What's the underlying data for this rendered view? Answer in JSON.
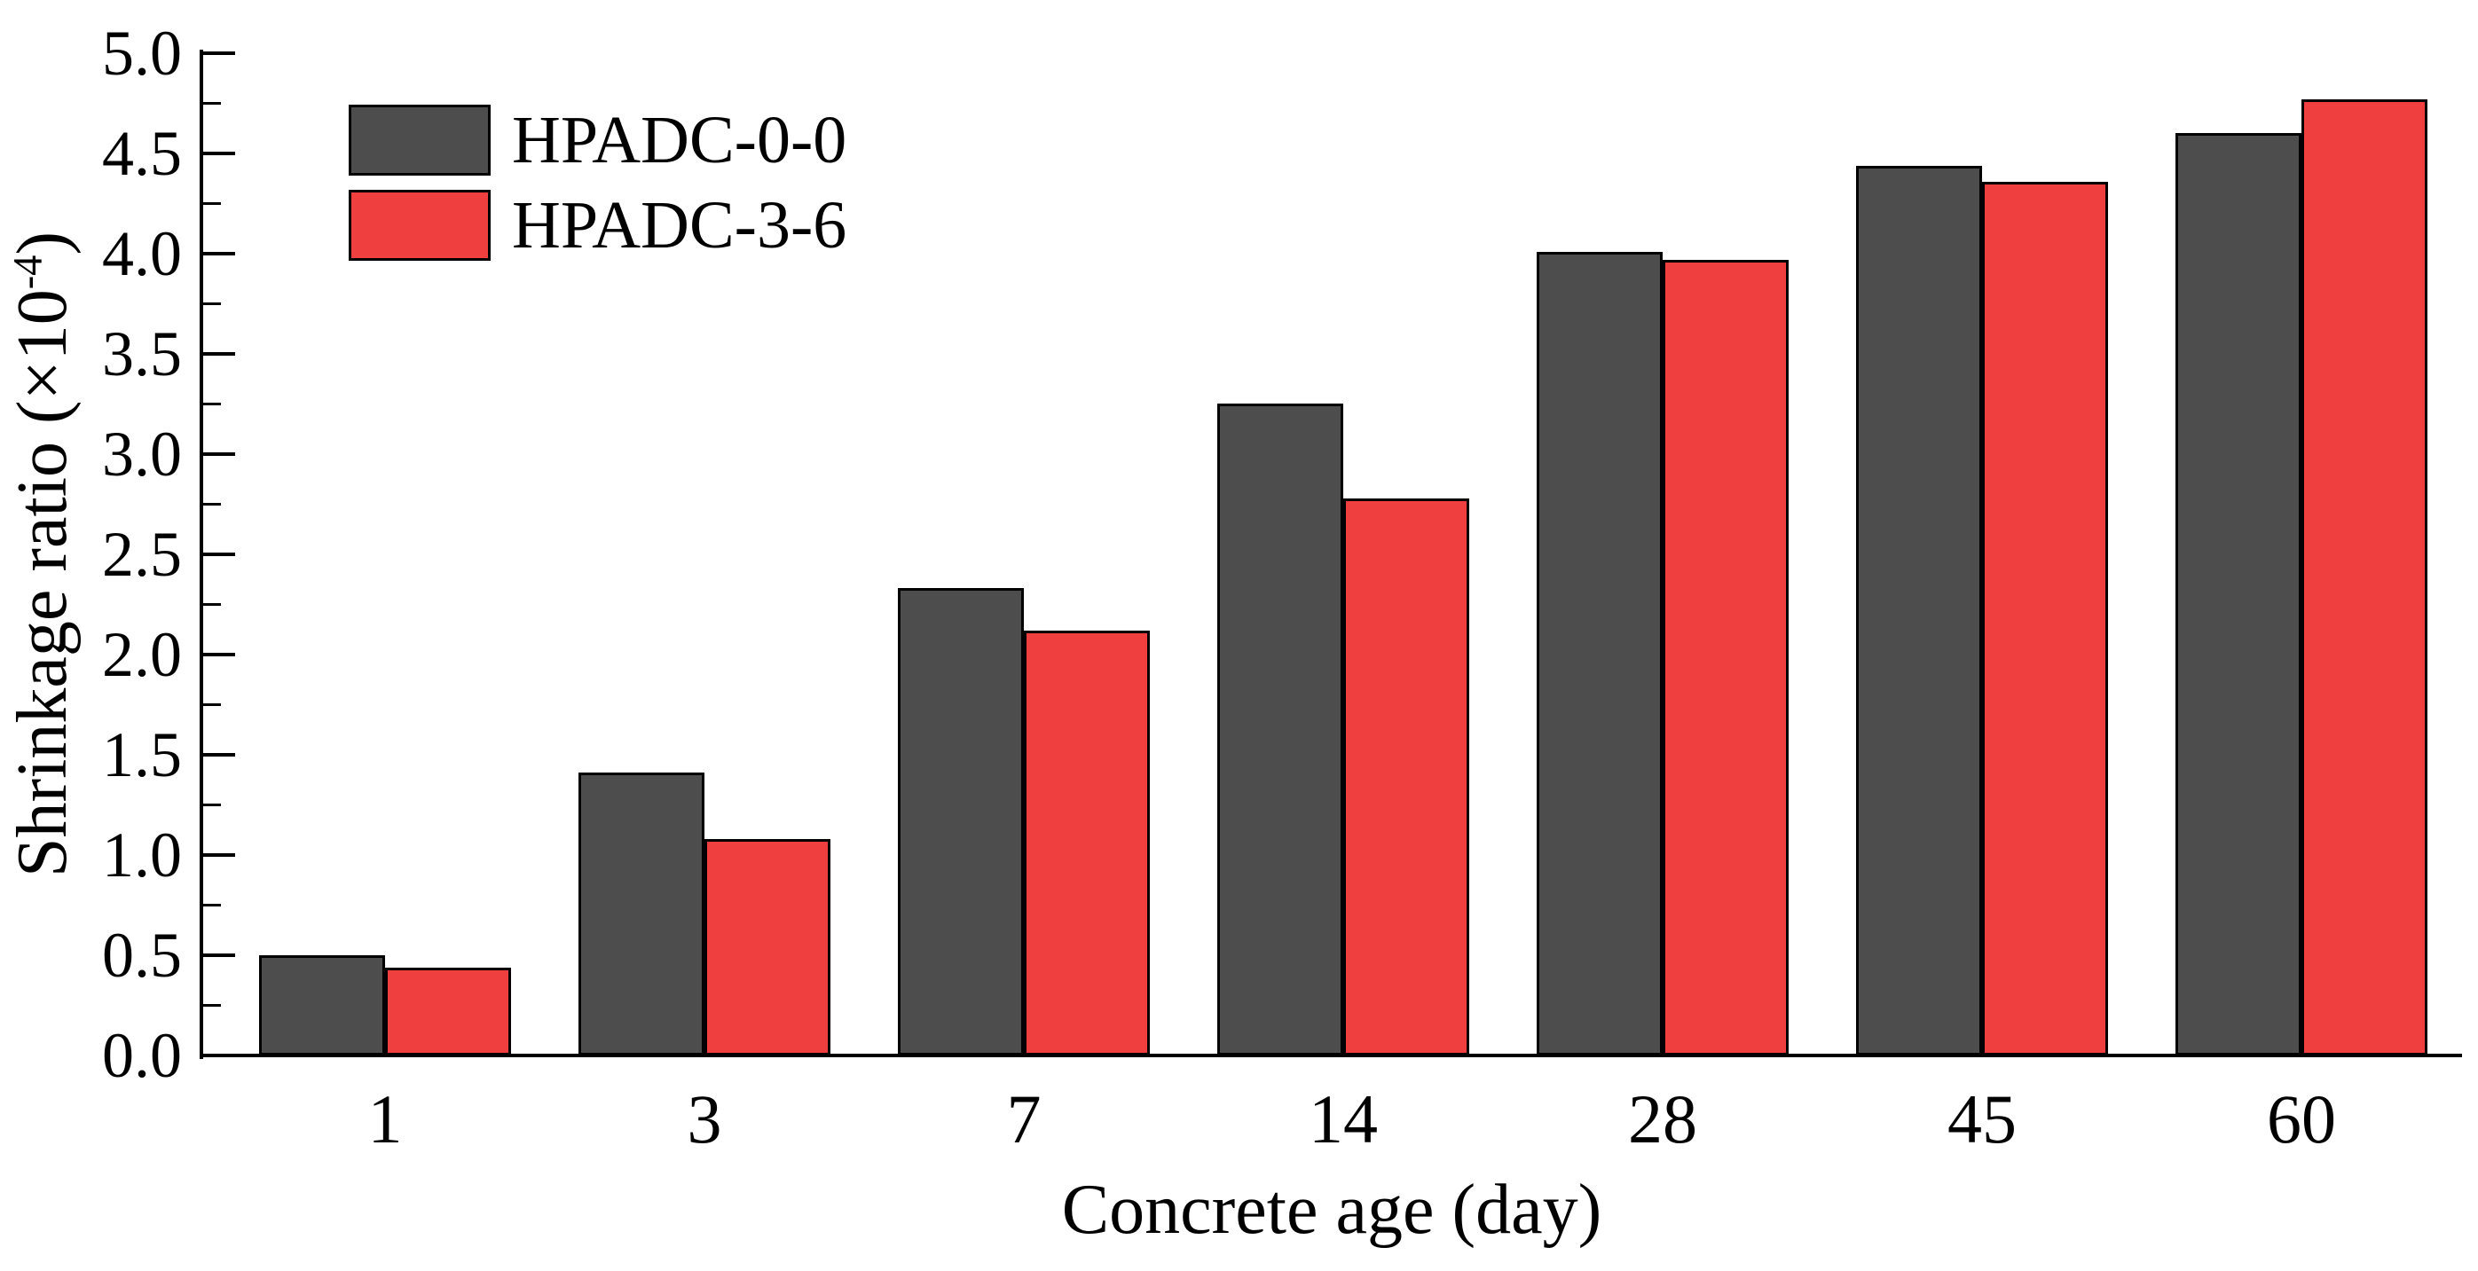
{
  "figure": {
    "background": "#ffffff",
    "axis_color": "#000000"
  },
  "chart_data": {
    "type": "bar",
    "title": "",
    "xlabel": "Concrete age (day)",
    "ylabel": "Shrinkage ratio (×10⁻⁴)",
    "ylabel_parts": {
      "prefix": "Shrinkage ratio (×10",
      "sup": "-4",
      "suffix": ")"
    },
    "categories": [
      "1",
      "3",
      "7",
      "14",
      "28",
      "45",
      "60"
    ],
    "series": [
      {
        "name": "HPADC-0-0",
        "color": "#4d4d4d",
        "values": [
          0.5,
          1.41,
          2.33,
          3.25,
          4.01,
          4.44,
          4.6
        ]
      },
      {
        "name": "HPADC-3-6",
        "color": "#ef3f3f",
        "values": [
          0.44,
          1.08,
          2.12,
          2.78,
          3.97,
          4.36,
          4.77
        ]
      }
    ],
    "ylim": [
      0,
      5
    ],
    "y_major_step": 0.5,
    "y_minor_step": 0.25,
    "y_tick_labels": [
      "0.0",
      "0.5",
      "1.0",
      "1.5",
      "2.0",
      "2.5",
      "3.0",
      "3.5",
      "4.0",
      "4.5",
      "5.0"
    ],
    "grid": false,
    "legend_position": "top-left",
    "bar_border_color": "#000000",
    "tick_direction": "in"
  }
}
